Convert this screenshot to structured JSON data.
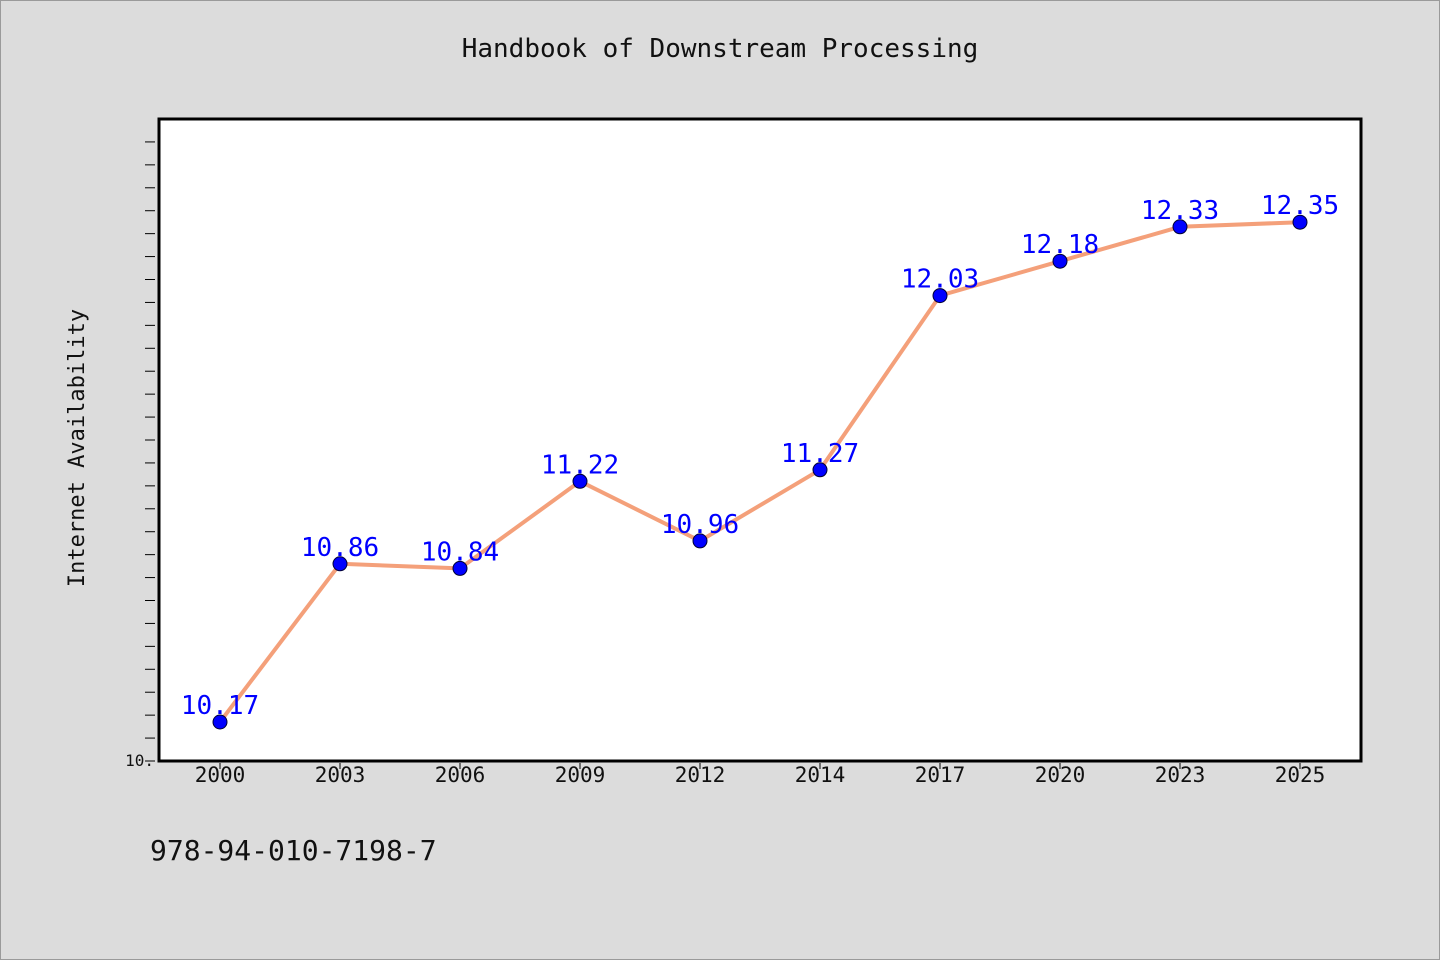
{
  "chart_data": {
    "type": "line",
    "title": "Handbook of Downstream Processing",
    "ylabel": "Internet Availability",
    "xlabel": "",
    "x": [
      "2000",
      "2003",
      "2006",
      "2009",
      "2012",
      "2014",
      "2017",
      "2020",
      "2023",
      "2025"
    ],
    "values": [
      10.17,
      10.86,
      10.84,
      11.22,
      10.96,
      11.27,
      12.03,
      12.18,
      12.33,
      12.35
    ],
    "data_labels": [
      "10.17",
      "10.86",
      "10.84",
      "11.22",
      "10.96",
      "11.27",
      "12.03",
      "12.18",
      "12.33",
      "12.35"
    ],
    "y_tick_label": "10.",
    "ylim": [
      10.0,
      12.8
    ],
    "grid": false,
    "legend": "none",
    "line_color": "#f4a07a",
    "marker_color": "#0000ff",
    "label_color": "#0000ff"
  },
  "footer": {
    "isbn": "978-94-010-7198-7"
  }
}
